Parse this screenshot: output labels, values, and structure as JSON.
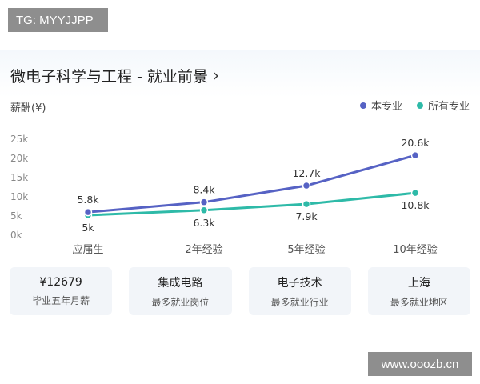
{
  "watermark_top": "TG: MYYJJPP",
  "watermark_bottom": "www.ooozb.cn",
  "header": {
    "title": "微电子科学与工程 - 就业前景",
    "chevron": "›"
  },
  "y_axis_label": "薪酬(¥)",
  "colors": {
    "this_major": "#5662c4",
    "all_majors": "#2ebaa8"
  },
  "legend": [
    {
      "label": "本专业",
      "color": "#5662c4"
    },
    {
      "label": "所有专业",
      "color": "#2ebaa8"
    }
  ],
  "chart_data": {
    "type": "line",
    "ylabel": "薪酬(¥)",
    "categories": [
      "应届生",
      "2年经验",
      "5年经验",
      "10年经验"
    ],
    "y_ticks": [
      "0k",
      "5k",
      "10k",
      "15k",
      "20k",
      "25k"
    ],
    "ylim": [
      0,
      25
    ],
    "grid": false,
    "legend_position": "top-right",
    "series": [
      {
        "name": "本专业",
        "values": [
          5.8,
          8.4,
          12.7,
          20.6
        ],
        "labels": [
          "5.8k",
          "8.4k",
          "12.7k",
          "20.6k"
        ],
        "label_position": "above"
      },
      {
        "name": "所有专业",
        "values": [
          5,
          6.3,
          7.9,
          10.8
        ],
        "labels": [
          "5k",
          "6.3k",
          "7.9k",
          "10.8k"
        ],
        "label_position": "below"
      }
    ]
  },
  "stats": [
    {
      "value": "¥12679",
      "label": "毕业五年月薪"
    },
    {
      "value": "集成电路",
      "label": "最多就业岗位"
    },
    {
      "value": "电子技术",
      "label": "最多就业行业"
    },
    {
      "value": "上海",
      "label": "最多就业地区"
    }
  ]
}
